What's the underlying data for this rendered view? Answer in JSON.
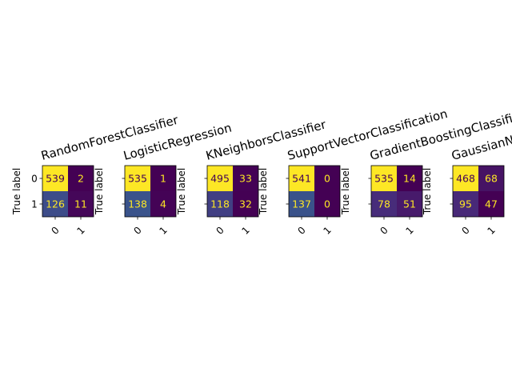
{
  "chart_data": [
    {
      "type": "heatmap",
      "title": "RandomForestClassifier",
      "ylabel": "True label",
      "x_tick_labels": [
        "0",
        "1"
      ],
      "y_tick_labels": [
        "0",
        "1"
      ],
      "matrix": [
        [
          539,
          2
        ],
        [
          126,
          11
        ]
      ]
    },
    {
      "type": "heatmap",
      "title": "LogisticRegression",
      "ylabel": "True label",
      "x_tick_labels": [
        "0",
        "1"
      ],
      "y_tick_labels": [],
      "matrix": [
        [
          535,
          1
        ],
        [
          138,
          4
        ]
      ]
    },
    {
      "type": "heatmap",
      "title": "KNeighborsClassifier",
      "ylabel": "True label",
      "x_tick_labels": [
        "0",
        "1"
      ],
      "y_tick_labels": [],
      "matrix": [
        [
          495,
          33
        ],
        [
          118,
          32
        ]
      ]
    },
    {
      "type": "heatmap",
      "title": "SupportVectorClassification",
      "ylabel": "True label",
      "x_tick_labels": [
        "0",
        "1"
      ],
      "y_tick_labels": [],
      "matrix": [
        [
          541,
          0
        ],
        [
          137,
          0
        ]
      ]
    },
    {
      "type": "heatmap",
      "title": "GradientBoostingClassifier",
      "ylabel": "True label",
      "x_tick_labels": [
        "0",
        "1"
      ],
      "y_tick_labels": [],
      "matrix": [
        [
          535,
          14
        ],
        [
          78,
          51
        ]
      ]
    },
    {
      "type": "heatmap",
      "title": "GaussianNB",
      "ylabel": "True label",
      "x_tick_labels": [
        "0",
        "1"
      ],
      "y_tick_labels": [],
      "matrix": [
        [
          468,
          68
        ],
        [
          95,
          47
        ]
      ]
    }
  ],
  "colors": {
    "colormap": "viridis",
    "text_on_dark": "#fde725",
    "text_on_light": "#440154"
  }
}
